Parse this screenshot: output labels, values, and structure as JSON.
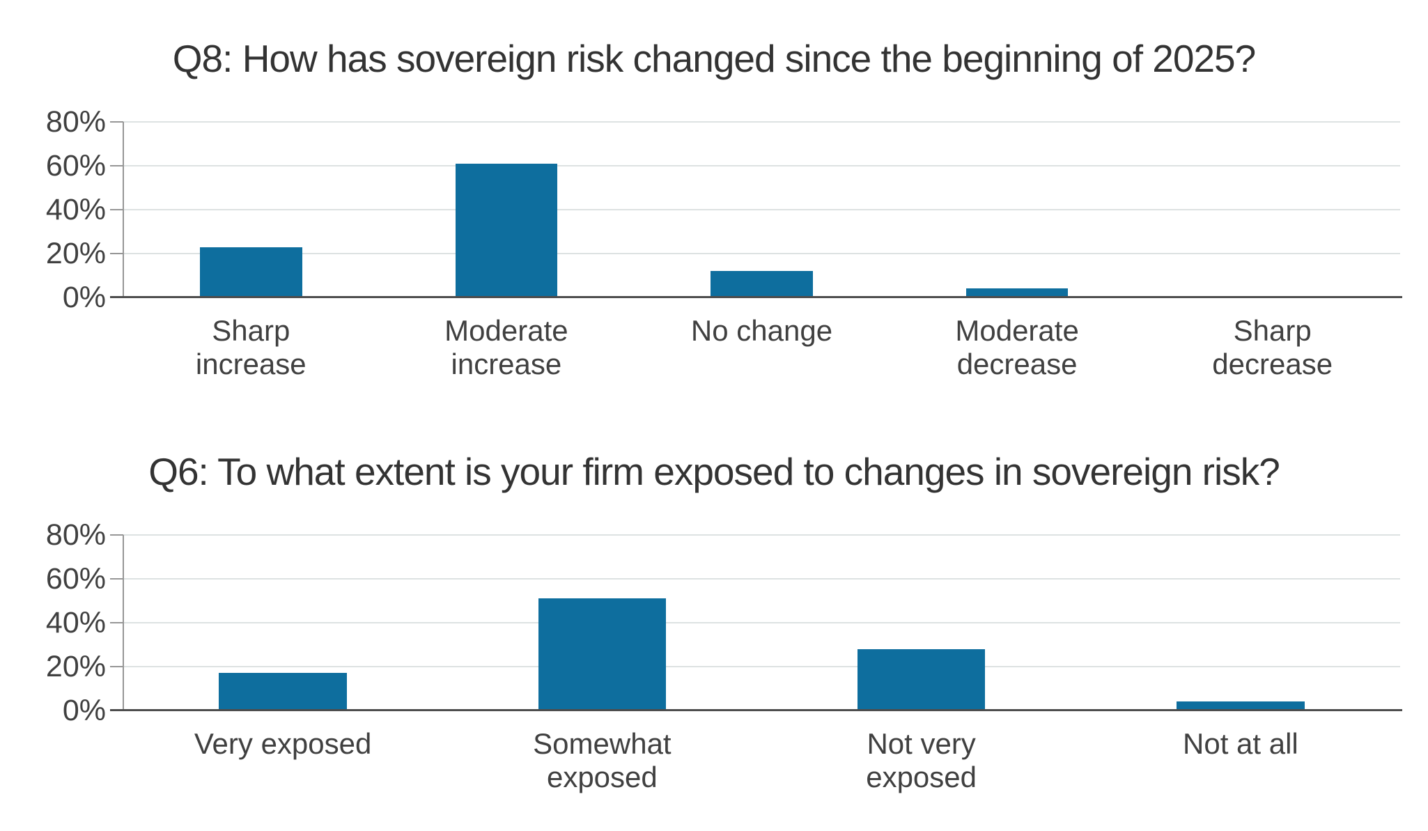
{
  "figure": {
    "background": "#ffffff",
    "bar_color": "#0e6e9e",
    "gridline_color": "#dde2e2",
    "baseline_color": "#4d4d4d",
    "axis_color": "#969696",
    "text_color": "#404040",
    "title_color": "#333333"
  },
  "chart_data": [
    {
      "type": "bar",
      "title": "Q8: How has sovereign risk changed since the beginning of 2025?",
      "categories": [
        "Sharp increase",
        "Moderate increase",
        "No change",
        "Moderate decrease",
        "Sharp decrease"
      ],
      "categories_wrapped": [
        "Sharp\nincrease",
        "Moderate\nincrease",
        "No change",
        "Moderate\ndecrease",
        "Sharp\ndecrease"
      ],
      "values": [
        23,
        61,
        12,
        4,
        0
      ],
      "unit": "%",
      "xlabel": "",
      "ylabel": "",
      "ylim": [
        0,
        80
      ],
      "ytick_values": [
        80,
        60,
        40,
        20,
        0
      ],
      "ytick_labels": [
        "80%",
        "60%",
        "40%",
        "20%",
        "0%"
      ],
      "grid": true,
      "legend": null
    },
    {
      "type": "bar",
      "title": "Q6: To what extent is your firm exposed to changes in sovereign risk?",
      "categories": [
        "Very exposed",
        "Somewhat exposed",
        "Not very exposed",
        "Not at all"
      ],
      "categories_wrapped": [
        "Very exposed",
        "Somewhat\nexposed",
        "Not very\nexposed",
        "Not at all"
      ],
      "values": [
        17,
        51,
        28,
        4
      ],
      "unit": "%",
      "xlabel": "",
      "ylabel": "",
      "ylim": [
        0,
        80
      ],
      "ytick_values": [
        80,
        60,
        40,
        20,
        0
      ],
      "ytick_labels": [
        "80%",
        "60%",
        "40%",
        "20%",
        "0%"
      ],
      "grid": true,
      "legend": null
    }
  ]
}
